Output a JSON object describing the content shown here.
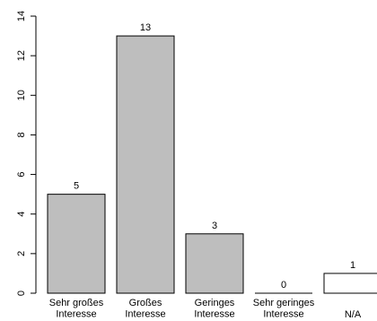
{
  "chart_data": {
    "type": "bar",
    "categories": [
      [
        "Sehr großes",
        "Interesse"
      ],
      [
        "Großes",
        "Interesse"
      ],
      [
        "Geringes",
        "Interesse"
      ],
      [
        "Sehr geringes",
        "Interesse"
      ],
      [
        "N/A"
      ]
    ],
    "values": [
      5,
      13,
      3,
      0,
      1
    ],
    "data_labels": [
      "5",
      "13",
      "3",
      "0",
      "1"
    ],
    "bar_colors": [
      "#bebebe",
      "#bebebe",
      "#bebebe",
      "#bebebe",
      "#ffffff"
    ],
    "bar_stroke": "#000000",
    "ylim": [
      0,
      14
    ],
    "yticks": [
      0,
      2,
      4,
      6,
      8,
      10,
      12,
      14
    ],
    "title": "",
    "xlabel": "",
    "ylabel": "",
    "grid": false,
    "legend": "none"
  }
}
